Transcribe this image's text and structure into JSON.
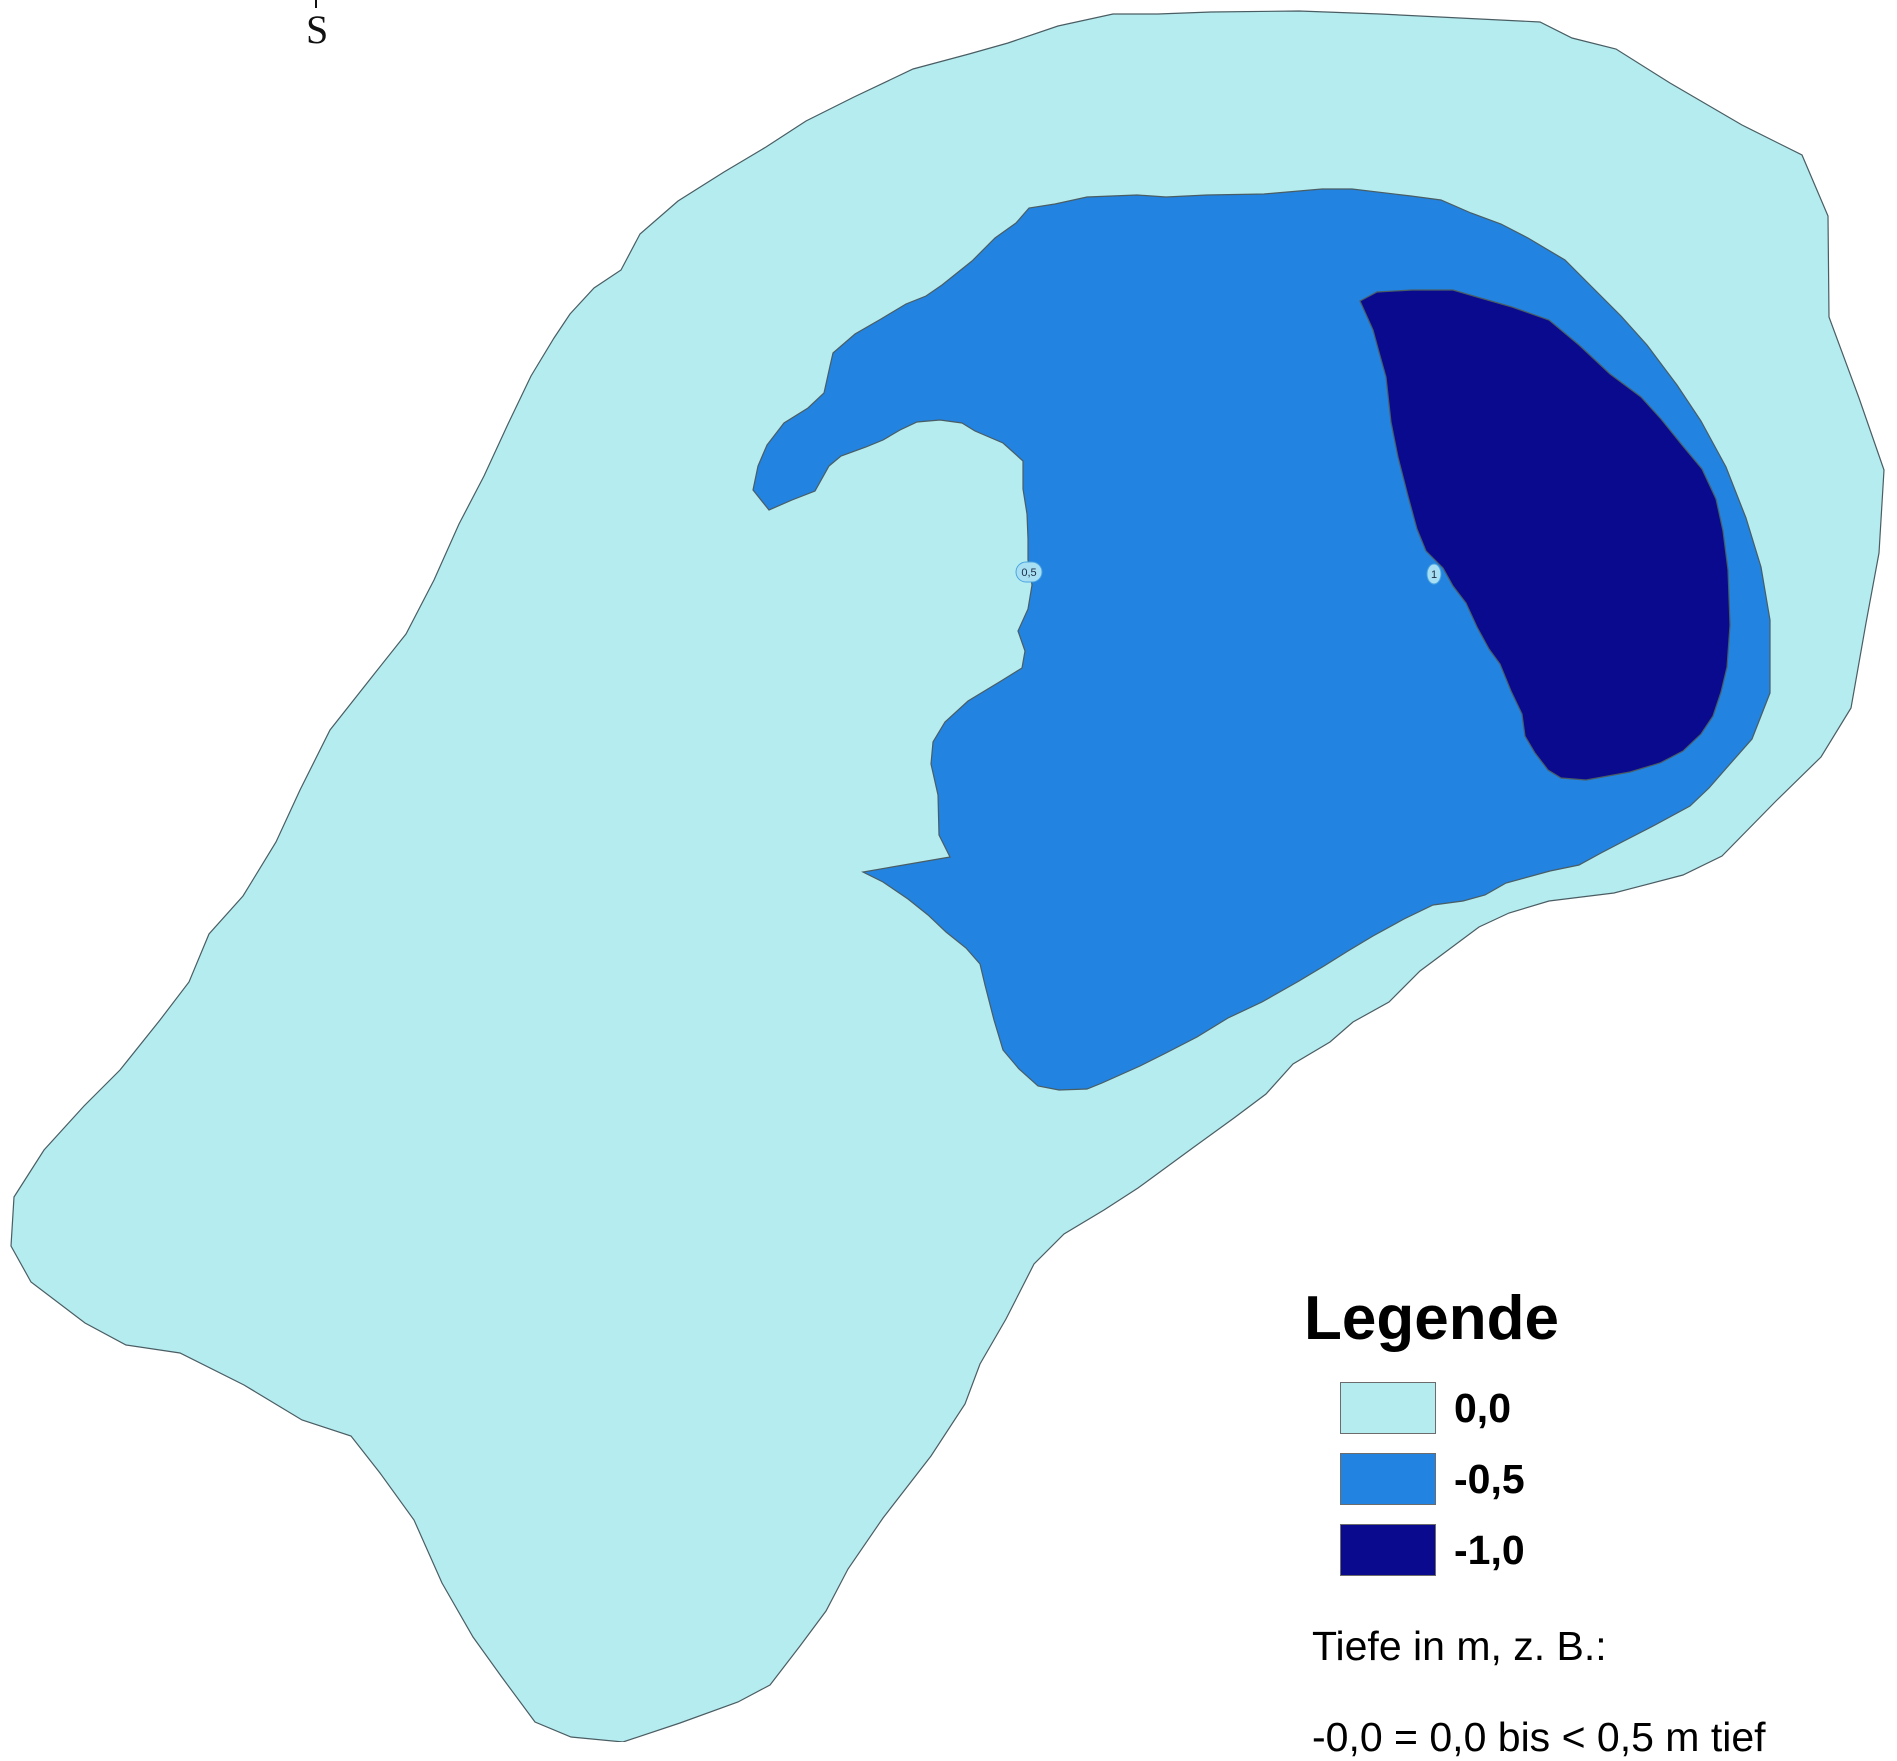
{
  "map": {
    "compass_label": "S",
    "contour_labels": [
      {
        "id": "contour-label-05",
        "text": "0,5"
      },
      {
        "id": "contour-label-1",
        "text": "1"
      }
    ],
    "colors": {
      "depth_0": "#b4ecef",
      "depth_05": "#2283e0",
      "depth_10": "#0a0a8f",
      "outline": "#4a5d63"
    }
  },
  "legend": {
    "title": "Legende",
    "items": [
      {
        "label": "0,0",
        "color": "#b4ecef"
      },
      {
        "label": "-0,5",
        "color": "#2283e0"
      },
      {
        "label": "-1,0",
        "color": "#0a0a8f"
      }
    ],
    "note": "Tiefe in m, z. B.:",
    "example": "-0,0 = 0,0 bis < 0,5 m tief"
  }
}
